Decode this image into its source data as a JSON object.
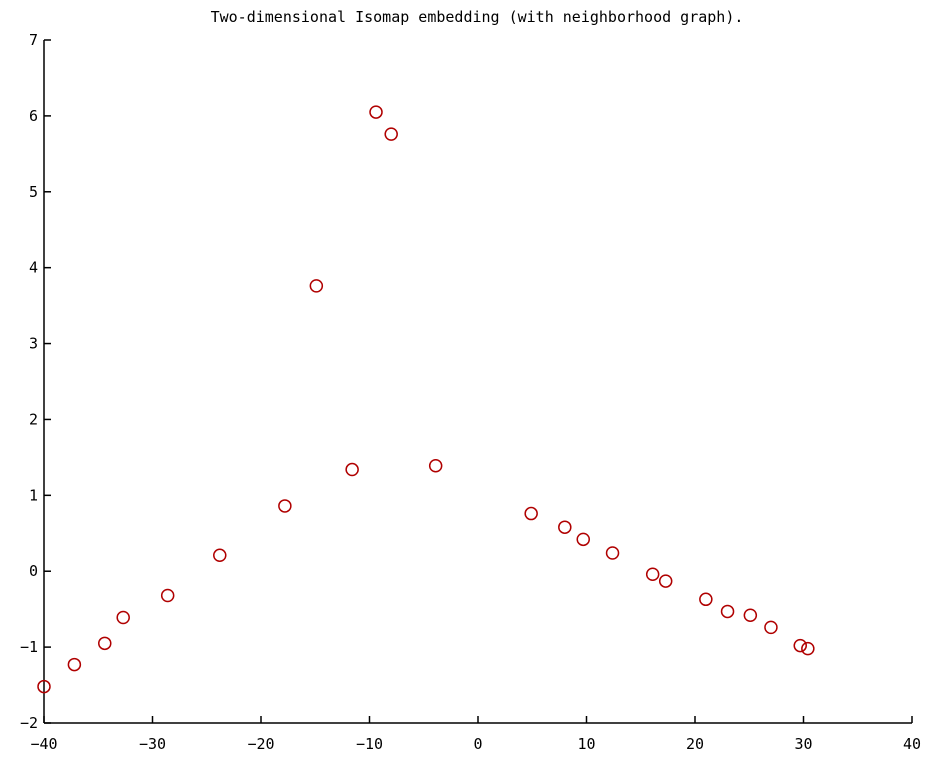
{
  "chart_data": {
    "type": "scatter",
    "title": "Two-dimensional Isomap embedding (with neighborhood graph).",
    "xlabel": "",
    "ylabel": "",
    "xlim": [
      -40,
      40
    ],
    "ylim": [
      -2,
      7
    ],
    "x_ticks": [
      -40,
      -30,
      -20,
      -10,
      0,
      10,
      20,
      30,
      40
    ],
    "y_ticks": [
      -2,
      -1,
      0,
      1,
      2,
      3,
      4,
      5,
      6,
      7
    ],
    "grid": false,
    "marker": "circle-open",
    "marker_color": "#b00000",
    "points": [
      {
        "x": -40.0,
        "y": -1.52
      },
      {
        "x": -37.2,
        "y": -1.23
      },
      {
        "x": -34.4,
        "y": -0.95
      },
      {
        "x": -32.7,
        "y": -0.61
      },
      {
        "x": -28.6,
        "y": -0.32
      },
      {
        "x": -23.8,
        "y": 0.21
      },
      {
        "x": -17.8,
        "y": 0.86
      },
      {
        "x": -14.9,
        "y": 3.76
      },
      {
        "x": -11.6,
        "y": 1.34
      },
      {
        "x": -9.4,
        "y": 6.05
      },
      {
        "x": -8.0,
        "y": 5.76
      },
      {
        "x": -3.9,
        "y": 1.39
      },
      {
        "x": 4.9,
        "y": 0.76
      },
      {
        "x": 8.0,
        "y": 0.58
      },
      {
        "x": 9.7,
        "y": 0.42
      },
      {
        "x": 12.4,
        "y": 0.24
      },
      {
        "x": 16.1,
        "y": -0.04
      },
      {
        "x": 17.3,
        "y": -0.13
      },
      {
        "x": 21.0,
        "y": -0.37
      },
      {
        "x": 23.0,
        "y": -0.53
      },
      {
        "x": 25.1,
        "y": -0.58
      },
      {
        "x": 27.0,
        "y": -0.74
      },
      {
        "x": 29.7,
        "y": -0.98
      },
      {
        "x": 30.4,
        "y": -1.02
      }
    ]
  }
}
